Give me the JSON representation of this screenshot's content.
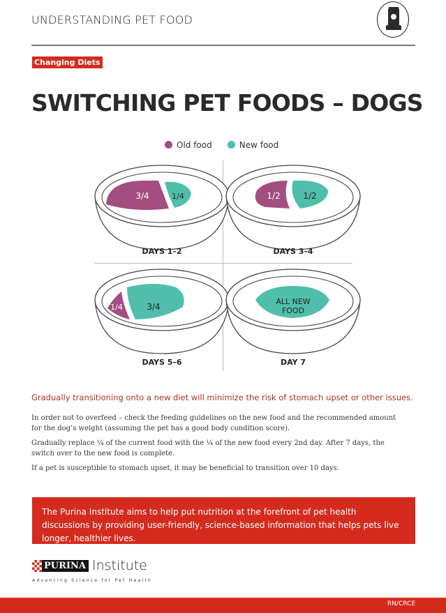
{
  "header": {
    "title": "UNDERSTANDING PET FOOD",
    "icon": "pet-food-bag-icon"
  },
  "tag": "Changing Diets",
  "title": "SWITCHING PET FOODS – DOGS",
  "legend": [
    {
      "label": "Old food",
      "color": "#a34d80"
    },
    {
      "label": "New food",
      "color": "#4fbfab"
    }
  ],
  "bowls": [
    {
      "label": "DAYS 1–2",
      "old": "3/4",
      "new": "1/4"
    },
    {
      "label": "DAYS 3–4",
      "old": "1/2",
      "new": "1/2"
    },
    {
      "label": "DAYS 5–6",
      "old": "1/4",
      "new": "3/4"
    },
    {
      "label": "DAY 7",
      "new_line1": "ALL NEW",
      "new_line2": "FOOD"
    }
  ],
  "lead": "Gradually transitioning onto a new diet will minimize the risk of stomach upset or other issues.",
  "paragraphs": [
    "In order not to overfeed – check the feeding guidelines on the new food and the recommended amount for the dog’s weight (assuming the pet has a good body condition score).",
    "Gradually replace ¼ of the current food with the ¼ of the new food every 2nd day. After 7 days, the switch over to the new food is complete.",
    "If a pet is susceptible to stomach upset, it may be beneficial to transition over 10 days."
  ],
  "banner": "The Purina Institute aims to help put nutrition at the forefront of pet health discussions by providing user-friendly, science-based information that helps pets live longer, healthier lives.",
  "brand": {
    "name": "PURINA",
    "suffix": "Institute",
    "tagline": "Advancing Science for Pet Health"
  },
  "footer": {
    "code": "RN/CRCE"
  }
}
